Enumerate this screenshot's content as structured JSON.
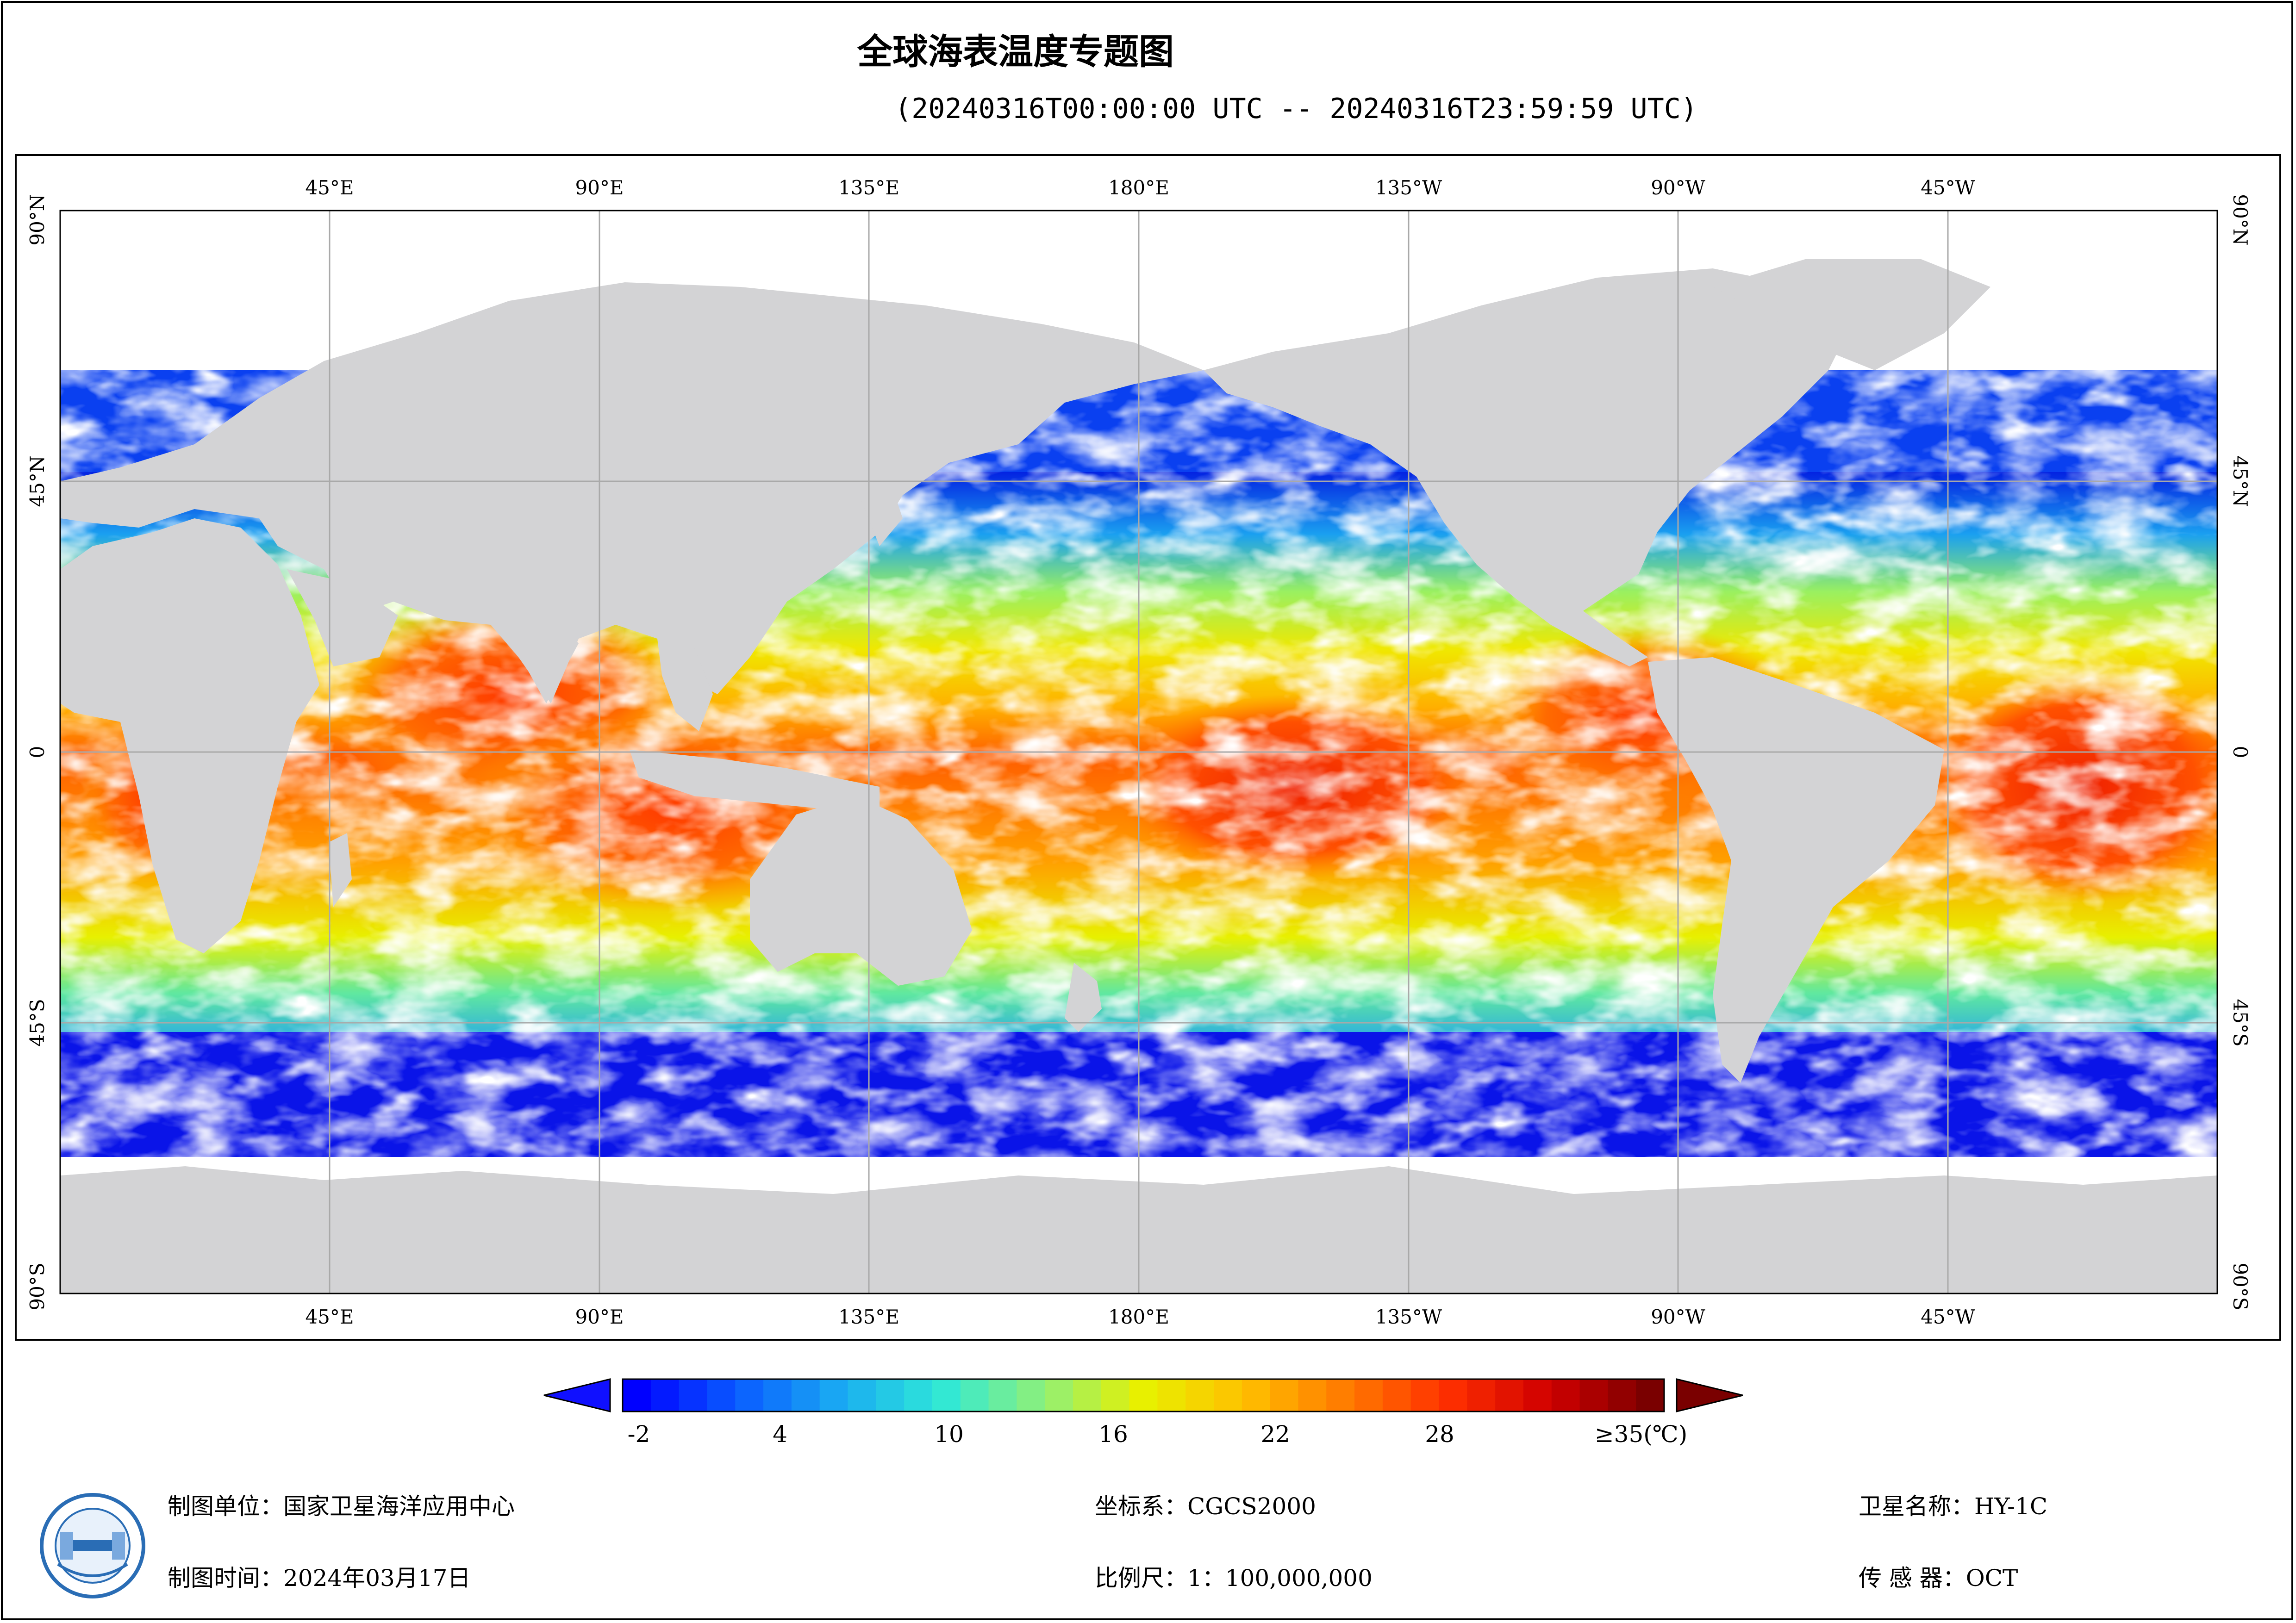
{
  "title": "全球海表温度专题图",
  "subtitle": "(20240316T00:00:00 UTC -- 20240316T23:59:59 UTC)",
  "map": {
    "lon_labels_top": [
      "45°E",
      "90°E",
      "135°E",
      "180°E",
      "135°W",
      "90°W",
      "45°W"
    ],
    "lon_labels_bottom": [
      "45°E",
      "90°E",
      "135°E",
      "180°E",
      "135°W",
      "90°W",
      "45°W"
    ],
    "lat_labels_left": [
      "90°N",
      "45°N",
      "0",
      "45°S",
      "90°S"
    ],
    "lat_labels_right": [
      "90°N",
      "45°N",
      "0",
      "45°S",
      "90°S"
    ],
    "land_color": "#d3d3d5",
    "gridline_color": "#a9a9a9"
  },
  "colorbar": {
    "ticks": [
      "-2",
      "4",
      "10",
      "16",
      "22",
      "28",
      "≥35(℃)"
    ],
    "tick_values": [
      -2,
      4,
      10,
      16,
      22,
      28,
      35
    ],
    "min": -2,
    "max": 35,
    "colors": [
      "#0000ff",
      "#0a5cff",
      "#1aaaf2",
      "#2ee8d8",
      "#8ef07a",
      "#e8f000",
      "#ffc000",
      "#ff7a00",
      "#ff3000",
      "#d00000",
      "#7a0000"
    ],
    "left_arrow_color": "#1010ff",
    "right_arrow_color": "#7a0000"
  },
  "footer": {
    "producer": "制图单位：国家卫星海洋应用中心",
    "date": "制图时间：2024年03月17日",
    "coord": "坐标系：CGCS2000",
    "scale": "比例尺：1：100,000,000",
    "satellite": "卫星名称：HY-1C",
    "sensor": "传 感 器：OCT"
  },
  "icons": {
    "logo": "national-satellite-ocean-application-service-logo"
  }
}
